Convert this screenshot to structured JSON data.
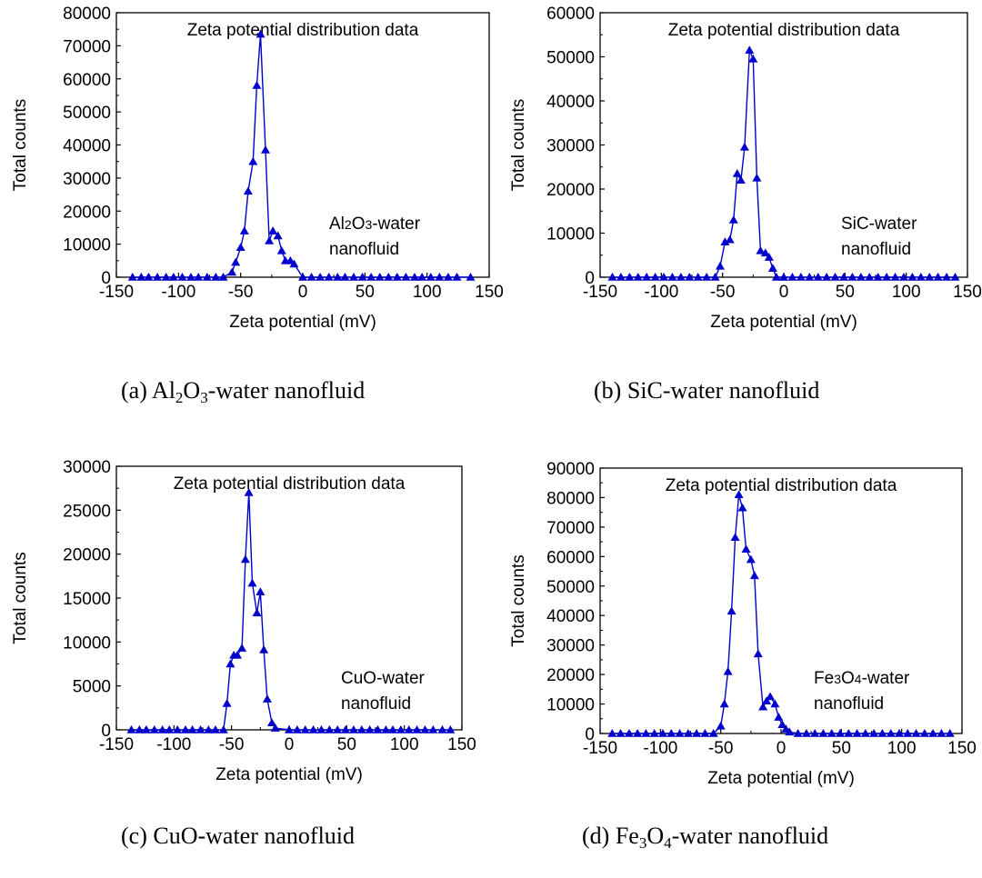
{
  "chart_data": [
    {
      "type": "line",
      "panel": "a",
      "title": "Zeta potential distribution data",
      "annotation": [
        "Al2O3-water",
        "nanofluid"
      ],
      "xlabel": "Zeta potential (mV)",
      "ylabel": "Total counts",
      "xlim": [
        -150,
        150
      ],
      "ylim": [
        0,
        80000
      ],
      "xticks": [
        -150,
        -100,
        -50,
        0,
        50,
        100,
        150
      ],
      "yticks": [
        0,
        10000,
        20000,
        30000,
        40000,
        50000,
        60000,
        70000,
        80000
      ],
      "grid": false,
      "color": "#0000CC",
      "marker": "triangle",
      "series": [
        {
          "x": [
            -137,
            -130,
            -124,
            -117,
            -110,
            -104,
            -97,
            -90,
            -84,
            -77,
            -70,
            -64,
            -57,
            -54,
            -50,
            -47,
            -44,
            -40,
            -37,
            -34,
            -30,
            -27,
            -24,
            -20,
            -17,
            -14,
            -10,
            -7,
            0,
            7,
            14,
            21,
            28,
            34,
            41,
            48,
            55,
            62,
            69,
            76,
            83,
            90,
            96,
            103,
            110,
            117,
            124,
            135
          ],
          "y": [
            0,
            0,
            0,
            0,
            0,
            0,
            0,
            0,
            0,
            0,
            0,
            0,
            1500,
            4500,
            9000,
            14000,
            26000,
            35000,
            58000,
            73500,
            38500,
            11000,
            14000,
            12500,
            8000,
            5000,
            5000,
            4000,
            0,
            0,
            0,
            0,
            0,
            0,
            0,
            0,
            0,
            0,
            0,
            0,
            0,
            0,
            0,
            0,
            0,
            0,
            0,
            0
          ]
        }
      ]
    },
    {
      "type": "line",
      "panel": "b",
      "title": "Zeta potential distribution data",
      "annotation": [
        "SiC-water",
        "nanofluid"
      ],
      "xlabel": "Zeta potential (mV)",
      "ylabel": "Total counts",
      "xlim": [
        -150,
        150
      ],
      "ylim": [
        0,
        60000
      ],
      "xticks": [
        -150,
        -100,
        -50,
        0,
        50,
        100,
        150
      ],
      "yticks": [
        0,
        10000,
        20000,
        30000,
        40000,
        50000,
        60000
      ],
      "grid": false,
      "color": "#0000CC",
      "marker": "triangle",
      "series": [
        {
          "x": [
            -140,
            -133,
            -126,
            -119,
            -112,
            -105,
            -98,
            -91,
            -84,
            -77,
            -70,
            -63,
            -56,
            -52,
            -48,
            -44,
            -41,
            -38,
            -35,
            -32,
            -28,
            -25,
            -22,
            -19,
            -15,
            -12,
            -9,
            -6,
            0,
            7,
            14,
            21,
            28,
            35,
            42,
            49,
            56,
            63,
            70,
            77,
            84,
            91,
            98,
            105,
            112,
            119,
            126,
            133,
            140
          ],
          "y": [
            0,
            0,
            0,
            0,
            0,
            0,
            0,
            0,
            0,
            0,
            0,
            0,
            0,
            2500,
            8000,
            8500,
            13000,
            23500,
            22000,
            29500,
            51500,
            49500,
            22500,
            6000,
            5500,
            4500,
            2000,
            0,
            0,
            0,
            0,
            0,
            0,
            0,
            0,
            0,
            0,
            0,
            0,
            0,
            0,
            0,
            0,
            0,
            0,
            0,
            0,
            0,
            0
          ]
        }
      ]
    },
    {
      "type": "line",
      "panel": "c",
      "title": "Zeta potential distribution data",
      "annotation": [
        "CuO-water",
        "nanofluid"
      ],
      "xlabel": "Zeta potential (mV)",
      "ylabel": "Total counts",
      "xlim": [
        -150,
        150
      ],
      "ylim": [
        0,
        30000
      ],
      "xticks": [
        -150,
        -100,
        -50,
        0,
        50,
        100,
        150
      ],
      "yticks": [
        0,
        5000,
        10000,
        15000,
        20000,
        25000,
        30000
      ],
      "grid": false,
      "color": "#0000CC",
      "marker": "triangle",
      "series": [
        {
          "x": [
            -137,
            -130,
            -124,
            -117,
            -110,
            -104,
            -97,
            -90,
            -84,
            -77,
            -70,
            -64,
            -57,
            -54,
            -51,
            -48,
            -45,
            -41,
            -38,
            -35,
            -32,
            -28,
            -25,
            -22,
            -19,
            -15,
            -12,
            0,
            7,
            14,
            21,
            28,
            35,
            42,
            49,
            56,
            63,
            70,
            77,
            84,
            90,
            97,
            104,
            111,
            118,
            125,
            133,
            140
          ],
          "y": [
            0,
            0,
            0,
            0,
            0,
            0,
            0,
            0,
            0,
            0,
            0,
            0,
            0,
            3000,
            7500,
            8500,
            8500,
            9300,
            19400,
            27000,
            16700,
            13300,
            15700,
            9100,
            3500,
            800,
            200,
            0,
            0,
            0,
            0,
            0,
            0,
            0,
            0,
            0,
            0,
            0,
            0,
            0,
            0,
            0,
            0,
            0,
            0,
            0,
            0,
            0
          ]
        }
      ]
    },
    {
      "type": "line",
      "panel": "d",
      "title": "Zeta potential distribution data",
      "annotation": [
        "Fe3O4-water",
        "nanofluid"
      ],
      "xlabel": "Zeta potential (mV)",
      "ylabel": "Total counts",
      "xlim": [
        -150,
        150
      ],
      "ylim": [
        0,
        90000
      ],
      "xticks": [
        -150,
        -100,
        -50,
        0,
        50,
        100,
        150
      ],
      "yticks": [
        0,
        10000,
        20000,
        30000,
        40000,
        50000,
        60000,
        70000,
        80000,
        90000
      ],
      "grid": false,
      "color": "#0000CC",
      "marker": "triangle",
      "series": [
        {
          "x": [
            -140,
            -133,
            -126,
            -119,
            -112,
            -105,
            -98,
            -91,
            -84,
            -77,
            -70,
            -63,
            -56,
            -50,
            -47,
            -44,
            -41,
            -38,
            -35,
            -32,
            -29,
            -25,
            -22,
            -19,
            -15,
            -12,
            -9,
            -5,
            -2,
            1,
            4,
            7,
            14,
            21,
            28,
            35,
            42,
            49,
            56,
            63,
            70,
            77,
            84,
            91,
            98,
            105,
            112,
            119,
            126,
            133,
            140
          ],
          "y": [
            0,
            0,
            0,
            0,
            0,
            0,
            0,
            0,
            0,
            0,
            0,
            0,
            0,
            2500,
            10000,
            21000,
            41500,
            66500,
            81000,
            76500,
            62500,
            59000,
            53500,
            27000,
            9000,
            11000,
            12500,
            10000,
            5500,
            3000,
            1500,
            500,
            0,
            0,
            0,
            0,
            0,
            0,
            0,
            0,
            0,
            0,
            0,
            0,
            0,
            0,
            0,
            0,
            0,
            0,
            0
          ]
        }
      ]
    }
  ],
  "captions": [
    {
      "prefix": "(a) Al",
      "s1": "2",
      "mid": "O",
      "s2": "3",
      "suffix": "-water nanofluid"
    },
    {
      "prefix": "(b) SiC-water nanofluid",
      "s1": "",
      "mid": "",
      "s2": "",
      "suffix": ""
    },
    {
      "prefix": "(c) CuO-water nanofluid",
      "s1": "",
      "mid": "",
      "s2": "",
      "suffix": ""
    },
    {
      "prefix": "(d) Fe",
      "s1": "3",
      "mid": "O",
      "s2": "4",
      "suffix": "-water nanofluid"
    }
  ]
}
